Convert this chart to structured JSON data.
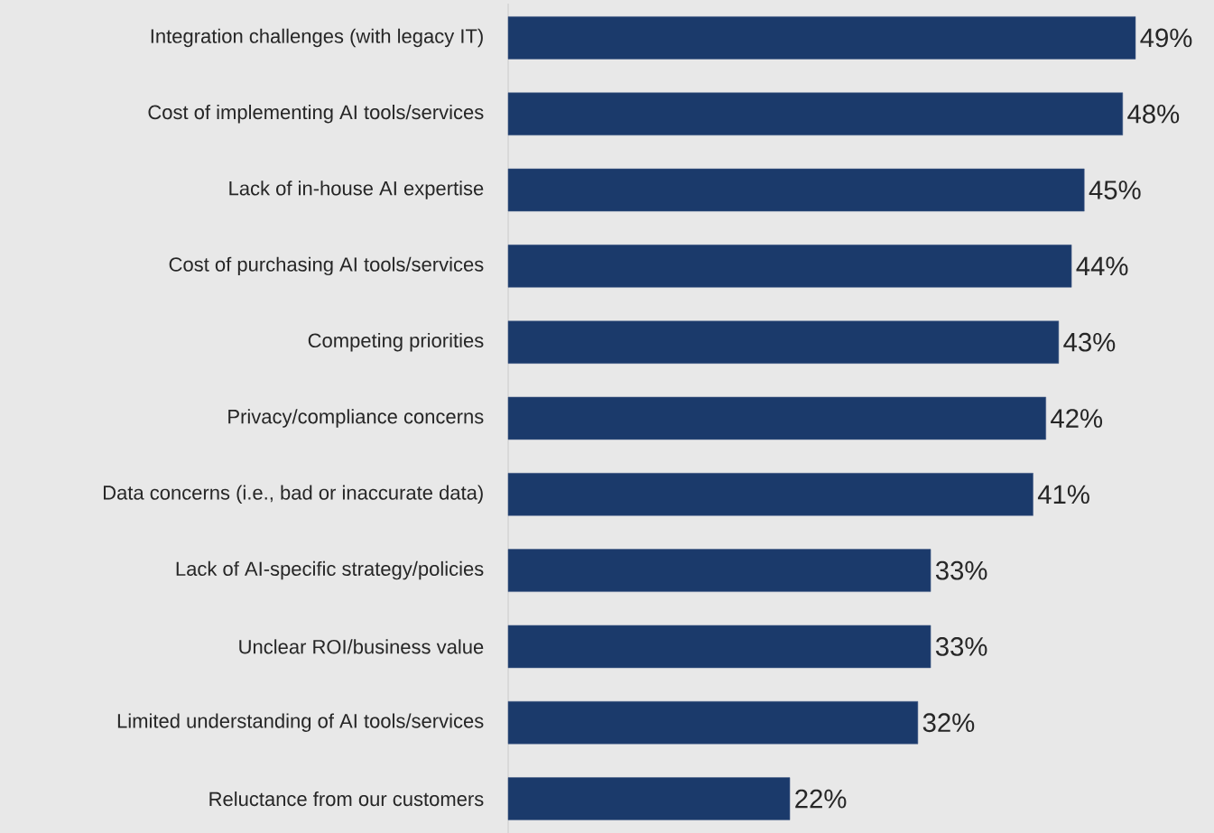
{
  "chart_data": {
    "type": "bar",
    "orientation": "horizontal",
    "categories": [
      "Integration challenges (with legacy IT)",
      "Cost of implementing AI tools/services",
      "Lack of in-house AI expertise",
      "Cost of purchasing AI tools/services",
      "Competing priorities",
      "Privacy/compliance concerns",
      "Data concerns (i.e., bad or inaccurate data)",
      "Lack of AI-specific strategy/policies",
      "Unclear ROI/business value",
      "Limited understanding of AI tools/services",
      "Reluctance from our customers"
    ],
    "values": [
      49,
      48,
      45,
      44,
      43,
      42,
      41,
      33,
      33,
      32,
      22
    ],
    "value_labels": [
      "49%",
      "48%",
      "45%",
      "44%",
      "43%",
      "42%",
      "41%",
      "33%",
      "33%",
      "32%",
      "22%"
    ],
    "color": "#1b3a6b"
  }
}
